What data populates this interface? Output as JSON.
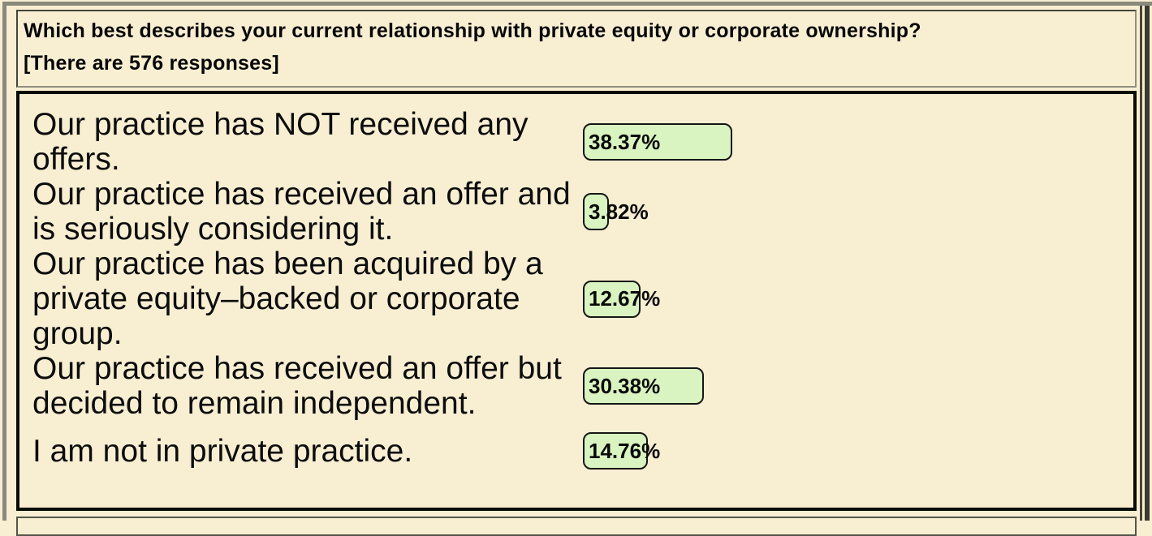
{
  "colors": {
    "page_background": "#f8eed2",
    "bar_fill": "#d9f4c0",
    "bar_border": "#161616",
    "text": "#0b0b0b"
  },
  "question": {
    "title": "Which best describes your current relationship with private equity or corporate ownership?",
    "responses_note": "[There are 576 responses]"
  },
  "chart_data": {
    "type": "bar",
    "orientation": "horizontal",
    "title": "Which best describes your current relationship with private equity or corporate ownership?",
    "total_responses": 576,
    "categories": [
      "Our practice has NOT received any offers.",
      "Our practice has received an offer and is seriously considering it.",
      "Our practice has been acquired by a private equity–backed or corporate group.",
      "Our practice has received an offer but decided to remain independent.",
      "I am not in private practice."
    ],
    "values": [
      38.37,
      3.82,
      12.67,
      30.38,
      14.76
    ],
    "value_labels": [
      "38.37%",
      "3.82%",
      "12.67%",
      "30.38%",
      "14.76%"
    ],
    "xlim": [
      0,
      100
    ],
    "grid": false,
    "legend": "none",
    "bar_fill": "#d9f4c0"
  }
}
